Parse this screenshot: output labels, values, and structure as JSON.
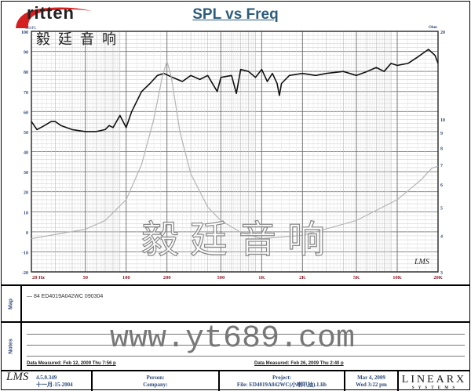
{
  "logo": {
    "en": "ritten",
    "cn": "毅廷音响"
  },
  "chart_data": {
    "type": "line",
    "title": "SPL vs Freq",
    "xscale": "log",
    "xlim": [
      20,
      20000
    ],
    "x_ticks": [
      {
        "v": 20,
        "label": "20 Hz"
      },
      {
        "v": 50,
        "label": "50"
      },
      {
        "v": 100,
        "label": "100"
      },
      {
        "v": 200,
        "label": "200"
      },
      {
        "v": 500,
        "label": "500"
      },
      {
        "v": 1000,
        "label": "1K"
      },
      {
        "v": 2000,
        "label": "2K"
      },
      {
        "v": 5000,
        "label": "5K"
      },
      {
        "v": 10000,
        "label": "10K"
      },
      {
        "v": 20000,
        "label": "20K"
      }
    ],
    "ylabel_left": "dBSPL",
    "ylim_left": [
      -20,
      100
    ],
    "y_ticks_left": [
      "100",
      "90",
      "80",
      "70",
      "60",
      "50",
      "40",
      "30",
      "20",
      "10",
      "0",
      "-10",
      "-20"
    ],
    "ylabel_right": "Ohm",
    "yscale_right": "log",
    "ylim_right": [
      3,
      20
    ],
    "y_ticks_right": [
      20,
      10,
      9,
      8,
      7,
      6,
      5,
      4,
      3
    ],
    "grid": true,
    "series": [
      {
        "role": "SPL",
        "axis": "left",
        "color": "#111111",
        "x": [
          20,
          22,
          25,
          28,
          30,
          33,
          40,
          50,
          60,
          70,
          75,
          80,
          90,
          95,
          100,
          110,
          130,
          150,
          170,
          190,
          220,
          260,
          300,
          350,
          400,
          470,
          500,
          600,
          650,
          700,
          800,
          900,
          1000,
          1100,
          1200,
          1300,
          1350,
          1400,
          1600,
          2000,
          2500,
          3000,
          4000,
          5000,
          6000,
          7000,
          8000,
          9000,
          10000,
          12000,
          14000,
          17000,
          19000,
          20000
        ],
        "y": [
          55,
          51,
          53,
          55,
          55,
          53,
          51,
          50,
          50,
          51,
          53,
          52,
          58,
          55,
          52,
          60,
          70,
          74,
          78,
          79,
          77,
          75,
          78,
          76,
          78,
          70,
          77,
          78,
          69,
          81,
          80,
          77,
          81,
          75,
          79,
          74,
          68,
          74,
          78,
          79,
          78,
          79,
          80,
          78,
          80,
          82,
          80,
          84,
          83,
          84,
          87,
          91,
          88,
          84
        ]
      },
      {
        "role": "Impedance",
        "axis": "right",
        "color": "#b5b5b5",
        "x": [
          20,
          50,
          70,
          100,
          130,
          160,
          185,
          200,
          215,
          250,
          300,
          400,
          500,
          700,
          1000,
          2000,
          5000,
          10000,
          15000,
          18000,
          20000
        ],
        "y": [
          3.9,
          4.2,
          4.5,
          5.3,
          7,
          10,
          14,
          15.8,
          14,
          9,
          6.5,
          5,
          4.5,
          4.1,
          3.9,
          4.0,
          4.5,
          5.3,
          6.2,
          6.8,
          6.9
        ]
      }
    ],
    "annotation": "LMS"
  },
  "watermark": {
    "cn": "毅廷音响",
    "url": "www.yt689.com"
  },
  "map": {
    "label": "Map",
    "legend": "— 84  ED4019A042WC   090304"
  },
  "notes": {
    "label": "Notes",
    "measured1": "Data Measured: Feb 12, 2009  Thu  7:56 p",
    "measured2": "Data Measured: Feb 26, 2009  Thu  2:40 p"
  },
  "footer": {
    "version": "4.5.0.349",
    "version_date": "十一月-15-2004",
    "lms": "LMS",
    "person": "Person:",
    "company": "Company:",
    "project": "Project:",
    "file": "File: ED4019A042WC(小喇叭抽).1.lib",
    "date": "Mar 4, 2009",
    "time": "Wed  3:22 pm",
    "brand": "LINEARX",
    "brand_sub": "S Y S T E M S"
  }
}
